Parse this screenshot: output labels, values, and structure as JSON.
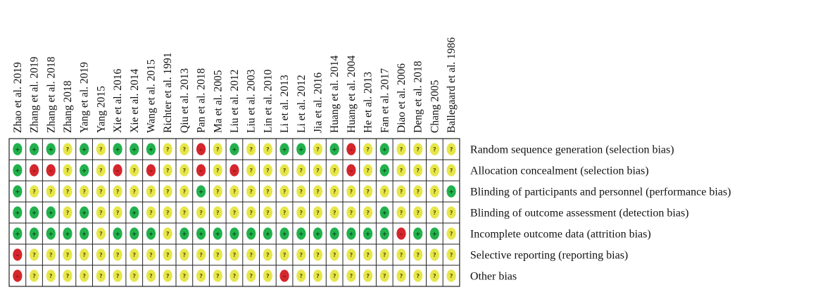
{
  "chart_data": {
    "type": "table",
    "studies": [
      "Zhao et al. 2019",
      "Zhang et al. 2019",
      "Zhang et al. 2018",
      "Zhang 2018",
      "Yang et al. 2019",
      "Yang 2015",
      "Xie et al. 2016",
      "Xie et al. 2014",
      "Wang et al. 2015",
      "Richter et al. 1991",
      "Qiu et al. 2013",
      "Pan et al. 2018",
      "Ma et al. 2005",
      "Liu et al. 2012",
      "Liu et al. 2003",
      "Lin et al. 2010",
      "Li et al. 2013",
      "Li et al. 2012",
      "Jia et al. 2016",
      "Huang et al. 2014",
      "Huang et al. 2004",
      "He et al. 2013",
      "Fan et al. 2017",
      "Diao et al. 2006",
      "Deng et al. 2018",
      "Chang 2005",
      "Ballegaard et al. 1986"
    ],
    "domains": [
      "Random sequence generation (selection bias)",
      "Allocation concealment (selection bias)",
      "Blinding of participants and personnel (performance bias)",
      "Blinding of outcome assessment (detection bias)",
      "Incomplete outcome data (attrition bias)",
      "Selective reporting (reporting bias)",
      "Other bias"
    ],
    "judgements": [
      [
        "+",
        "+",
        "+",
        "?",
        "+",
        "?",
        "+",
        "+",
        "+",
        "?",
        "?",
        "-",
        "?",
        "+",
        "?",
        "?",
        "+",
        "+",
        "?",
        "+",
        "-",
        "?",
        "+",
        "?",
        "?",
        "?",
        "?"
      ],
      [
        "+",
        "-",
        "-",
        "?",
        "+",
        "?",
        "-",
        "?",
        "-",
        "?",
        "?",
        "-",
        "?",
        "-",
        "?",
        "?",
        "?",
        "?",
        "?",
        "?",
        "-",
        "?",
        "+",
        "?",
        "?",
        "?",
        "?"
      ],
      [
        "+",
        "?",
        "?",
        "?",
        "?",
        "?",
        "?",
        "?",
        "?",
        "?",
        "?",
        "+",
        "?",
        "?",
        "?",
        "?",
        "?",
        "?",
        "?",
        "?",
        "?",
        "?",
        "?",
        "?",
        "?",
        "?",
        "+"
      ],
      [
        "+",
        "+",
        "+",
        "?",
        "+",
        "?",
        "?",
        "+",
        "?",
        "?",
        "?",
        "?",
        "?",
        "?",
        "?",
        "?",
        "?",
        "?",
        "?",
        "?",
        "?",
        "?",
        "+",
        "?",
        "?",
        "?",
        "?"
      ],
      [
        "+",
        "+",
        "+",
        "+",
        "+",
        "?",
        "+",
        "+",
        "+",
        "?",
        "+",
        "+",
        "+",
        "+",
        "+",
        "+",
        "+",
        "+",
        "+",
        "+",
        "+",
        "+",
        "+",
        "-",
        "+",
        "+",
        "?"
      ],
      [
        "-",
        "?",
        "?",
        "?",
        "?",
        "?",
        "?",
        "?",
        "?",
        "?",
        "?",
        "?",
        "?",
        "?",
        "?",
        "?",
        "?",
        "?",
        "?",
        "?",
        "?",
        "?",
        "?",
        "?",
        "?",
        "?",
        "?"
      ],
      [
        "-",
        "?",
        "?",
        "?",
        "?",
        "?",
        "?",
        "?",
        "?",
        "?",
        "?",
        "?",
        "?",
        "?",
        "?",
        "?",
        "-",
        "?",
        "?",
        "?",
        "?",
        "?",
        "?",
        "?",
        "?",
        "?",
        "?"
      ]
    ],
    "symbols": {
      "low": "+",
      "high": "-",
      "unclear": "?"
    },
    "colors": {
      "low": "#22b14c",
      "high": "#d4262c",
      "unclear": "#e6e64a",
      "grid": "#222222"
    }
  }
}
